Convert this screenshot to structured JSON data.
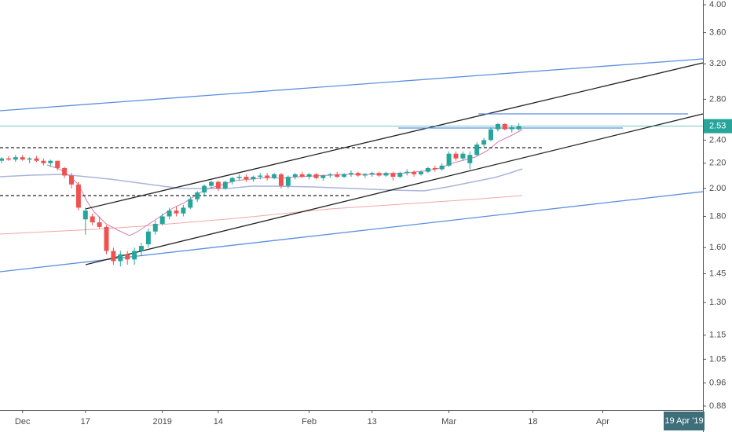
{
  "chart_data": {
    "type": "candlestick",
    "log_scale": true,
    "up_color": "#26a69a",
    "down_color": "#ef5350",
    "categories": [
      null,
      null,
      null,
      "Dec",
      null,
      null,
      null,
      null,
      null,
      null,
      null,
      null,
      "17",
      null,
      null,
      null,
      null,
      null,
      null,
      null,
      null,
      null,
      null,
      "2019",
      null,
      null,
      null,
      null,
      null,
      null,
      null,
      "14",
      null,
      null,
      null,
      null,
      null,
      null,
      null,
      null,
      null,
      null,
      null,
      null,
      "Feb",
      null,
      null,
      null,
      null,
      null,
      null,
      null,
      null,
      "13",
      null,
      null,
      null,
      null,
      null,
      null,
      null,
      null,
      null,
      null,
      "Mar",
      null,
      null,
      null,
      null,
      null,
      null,
      null,
      null,
      null,
      null,
      null,
      "18",
      null,
      null,
      null,
      null,
      null,
      null,
      null,
      null,
      null,
      "Apr",
      null,
      null,
      null,
      null,
      null,
      null,
      null,
      null,
      null,
      null,
      null,
      null,
      null,
      null
    ],
    "open": [
      2.22,
      2.24,
      2.23,
      2.25,
      2.23,
      2.24,
      2.22,
      2.2,
      2.22,
      2.16,
      2.1,
      2.03,
      1.78,
      1.8,
      1.76,
      1.73,
      1.58,
      1.52,
      1.56,
      1.53,
      1.58,
      1.62,
      1.7,
      1.75,
      1.8,
      1.84,
      1.82,
      1.86,
      1.92,
      1.97,
      2.02,
      2.05,
      2.0,
      2.05,
      2.08,
      2.09,
      2.07,
      2.09,
      2.1,
      2.08,
      2.11,
      2.02,
      2.09,
      2.11,
      2.09,
      2.11,
      2.08,
      2.1,
      2.11,
      2.09,
      2.11,
      2.12,
      2.1,
      2.11,
      2.12,
      2.1,
      2.12,
      2.09,
      2.12,
      2.13,
      2.11,
      2.13,
      2.16,
      2.15,
      2.18,
      2.28,
      2.24,
      2.2,
      2.27,
      2.36,
      2.4,
      2.5,
      2.55,
      2.5,
      2.5,
      null,
      null,
      null,
      null,
      null,
      null,
      null,
      null,
      null,
      null,
      null,
      null,
      null,
      null,
      null,
      null,
      null,
      null,
      null,
      null,
      null,
      null,
      null,
      null,
      null,
      null
    ],
    "high": [
      2.25,
      2.26,
      2.27,
      2.27,
      2.25,
      2.26,
      2.24,
      2.23,
      2.22,
      2.17,
      2.12,
      2.05,
      1.86,
      1.82,
      1.8,
      1.74,
      1.6,
      1.58,
      1.58,
      1.6,
      1.63,
      1.72,
      1.77,
      1.82,
      1.86,
      1.87,
      1.88,
      1.94,
      1.98,
      2.03,
      2.06,
      2.06,
      2.06,
      2.09,
      2.11,
      2.11,
      2.1,
      2.12,
      2.12,
      2.12,
      2.12,
      2.1,
      2.12,
      2.13,
      2.12,
      2.12,
      2.11,
      2.12,
      2.13,
      2.12,
      2.14,
      2.13,
      2.12,
      2.13,
      2.13,
      2.13,
      2.13,
      2.13,
      2.15,
      2.14,
      2.14,
      2.17,
      2.18,
      2.2,
      2.3,
      2.3,
      2.3,
      2.3,
      2.38,
      2.42,
      2.52,
      2.56,
      2.56,
      2.54,
      2.56,
      null,
      null,
      null,
      null,
      null,
      null,
      null,
      null,
      null,
      null,
      null,
      null,
      null,
      null,
      null,
      null,
      null,
      null,
      null,
      null,
      null,
      null,
      null,
      null,
      null,
      null
    ],
    "low": [
      2.2,
      2.22,
      2.21,
      2.22,
      2.2,
      2.21,
      2.18,
      2.17,
      2.14,
      2.08,
      2.0,
      1.84,
      1.68,
      1.74,
      1.72,
      1.56,
      1.5,
      1.49,
      1.5,
      1.5,
      1.55,
      1.6,
      1.68,
      1.74,
      1.78,
      1.8,
      1.8,
      1.85,
      1.9,
      1.95,
      2.0,
      1.98,
      1.99,
      2.03,
      2.06,
      2.05,
      2.05,
      2.07,
      2.06,
      2.07,
      2.0,
      2.0,
      2.07,
      2.08,
      2.07,
      2.07,
      2.06,
      2.08,
      2.08,
      2.08,
      2.09,
      2.09,
      2.08,
      2.09,
      2.09,
      2.09,
      2.06,
      2.08,
      2.1,
      2.09,
      2.1,
      2.12,
      2.13,
      2.14,
      2.17,
      2.22,
      2.22,
      2.15,
      2.26,
      2.34,
      2.39,
      2.48,
      2.49,
      2.47,
      2.49,
      null,
      null,
      null,
      null,
      null,
      null,
      null,
      null,
      null,
      null,
      null,
      null,
      null,
      null,
      null,
      null,
      null,
      null,
      null,
      null,
      null,
      null,
      null,
      null,
      null,
      null
    ],
    "close": [
      2.24,
      2.23,
      2.25,
      2.23,
      2.24,
      2.22,
      2.2,
      2.22,
      2.16,
      2.1,
      2.03,
      1.86,
      1.84,
      1.76,
      1.73,
      1.58,
      1.52,
      1.56,
      1.53,
      1.58,
      1.61,
      1.7,
      1.75,
      1.8,
      1.84,
      1.82,
      1.86,
      1.92,
      1.97,
      2.02,
      2.05,
      2.0,
      2.05,
      2.08,
      2.09,
      2.07,
      2.09,
      2.1,
      2.08,
      2.11,
      2.02,
      2.09,
      2.11,
      2.09,
      2.11,
      2.08,
      2.1,
      2.11,
      2.09,
      2.11,
      2.12,
      2.1,
      2.11,
      2.12,
      2.1,
      2.12,
      2.09,
      2.12,
      2.13,
      2.11,
      2.13,
      2.16,
      2.15,
      2.18,
      2.28,
      2.24,
      2.28,
      2.27,
      2.36,
      2.4,
      2.5,
      2.55,
      2.5,
      2.52,
      2.53,
      null,
      null,
      null,
      null,
      null,
      null,
      null,
      null,
      null,
      null,
      null,
      null,
      null,
      null,
      null,
      null,
      null,
      null,
      null,
      null,
      null,
      null,
      null,
      null,
      null,
      null
    ],
    "ylim": [
      0.867,
      4.072
    ],
    "yticks": [
      {
        "value": 4,
        "label": "4.00"
      },
      {
        "value": 3.6,
        "label": "3.60"
      },
      {
        "value": 3.2,
        "label": "3.20"
      },
      {
        "value": 2.8,
        "label": "2.80"
      },
      {
        "value": 2.4,
        "label": "2.40"
      },
      {
        "value": 2.2,
        "label": "2.20"
      },
      {
        "value": 2,
        "label": "2.00"
      },
      {
        "value": 1.8,
        "label": "1.80"
      },
      {
        "value": 1.6,
        "label": "1.60"
      },
      1.45,
      {
        "value": 1.3,
        "label": "1.30"
      },
      1.15,
      1.05,
      0.96,
      0.88
    ],
    "last_price": 2.53,
    "crosshair_label": "19 Apr '19"
  }
}
